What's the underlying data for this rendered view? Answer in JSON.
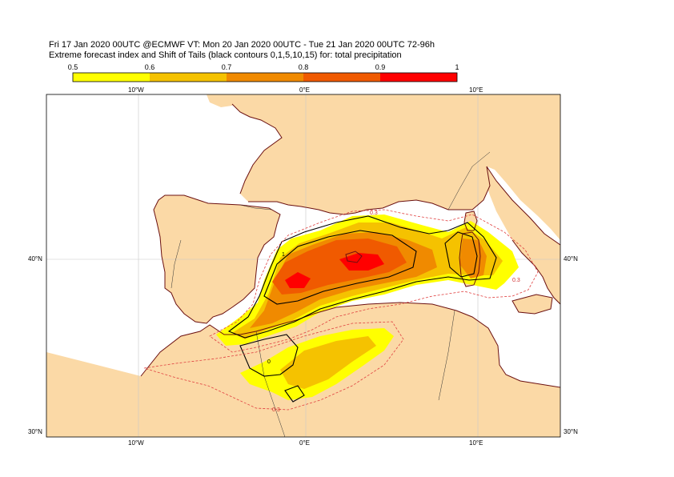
{
  "header": {
    "line1": "Fri 17 Jan 2020 00UTC @ECMWF VT: Mon 20 Jan 2020 00UTC - Tue 21 Jan 2020 00UTC  72-96h",
    "line2": "Extreme forecast index and Shift of Tails (black contours 0,1,5,10,15) for: total precipitation"
  },
  "colorbar": {
    "ticks": [
      "0.5",
      "0.6",
      "0.7",
      "0.8",
      "0.9",
      "1"
    ],
    "colors": [
      "#ffff00",
      "#f5c200",
      "#f08a00",
      "#f05a00",
      "#ff0000"
    ]
  },
  "map": {
    "land_color": "#fbd9a6",
    "sea_color": "#ffffff",
    "coast_color": "#6b1010",
    "lon_labels_top": [
      "10°W",
      "0°E",
      "10°E"
    ],
    "lon_labels_bottom": [
      "10°W",
      "0°E",
      "10°E"
    ],
    "lat_labels_left": [
      "40°N",
      "30°N"
    ],
    "lat_labels_right": [
      "40°N",
      "30°N"
    ],
    "contour_labels": [
      "0.3",
      "0.3",
      "0.3",
      "1",
      "0"
    ]
  }
}
